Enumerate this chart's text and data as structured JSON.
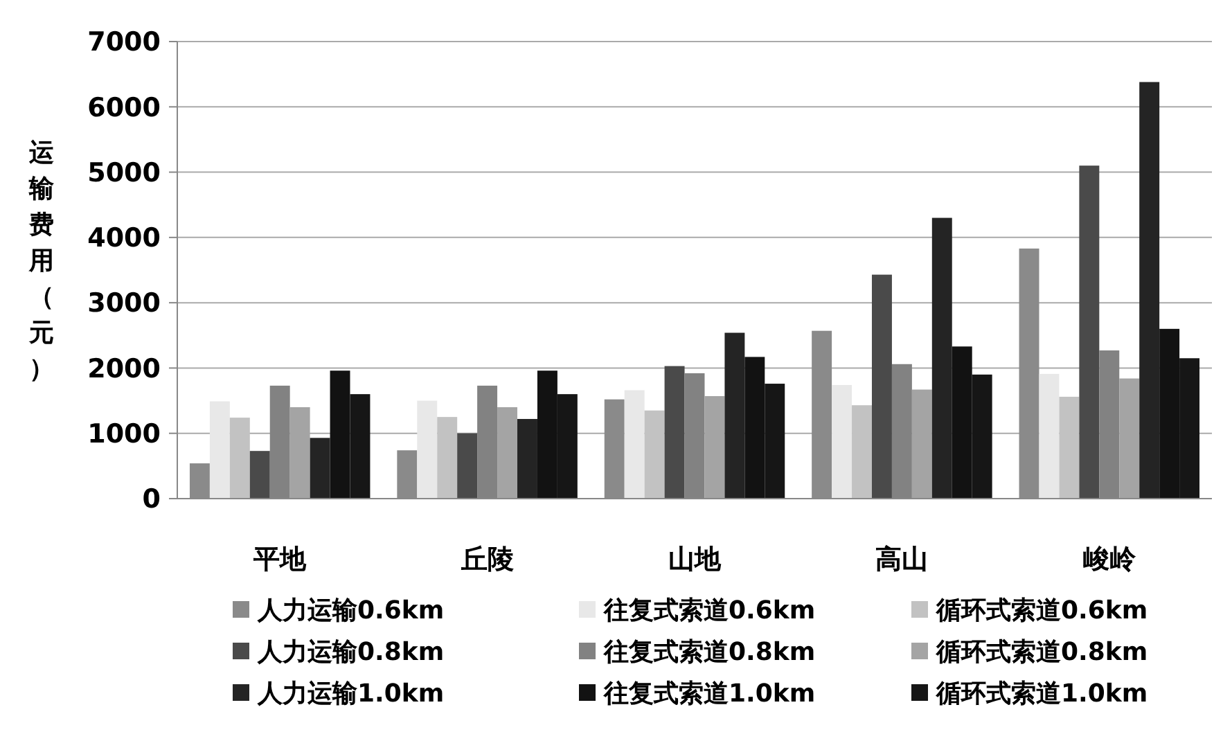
{
  "chart_data": {
    "type": "bar",
    "ylabel": "运输费用（元）",
    "categories": [
      "平地",
      "丘陵",
      "山地",
      "高山",
      "峻岭"
    ],
    "ylim": [
      0,
      7000
    ],
    "yticks": [
      0,
      1000,
      2000,
      3000,
      4000,
      5000,
      6000,
      7000
    ],
    "grid": "y",
    "legend": "bottom",
    "series": [
      {
        "name": "人力运输0.6km",
        "color": "#8a8a8a",
        "values": [
          540,
          740,
          1520,
          2570,
          3830
        ]
      },
      {
        "name": "往复式索道0.6km",
        "color": "#e8e8e8",
        "values": [
          1490,
          1500,
          1660,
          1740,
          1910
        ]
      },
      {
        "name": "循环式索道0.6km",
        "color": "#c2c2c2",
        "values": [
          1240,
          1250,
          1350,
          1430,
          1560
        ]
      },
      {
        "name": "人力运输0.8km",
        "color": "#4a4a4a",
        "values": [
          730,
          1000,
          2030,
          3430,
          5100
        ]
      },
      {
        "name": "往复式索道0.8km",
        "color": "#828282",
        "values": [
          1730,
          1730,
          1920,
          2060,
          2270
        ]
      },
      {
        "name": "循环式索道0.8km",
        "color": "#a4a4a4",
        "values": [
          1400,
          1400,
          1570,
          1670,
          1840
        ]
      },
      {
        "name": "人力运输1.0km",
        "color": "#242424",
        "values": [
          930,
          1220,
          2540,
          4300,
          6380
        ]
      },
      {
        "name": "往复式索道1.0km",
        "color": "#121212",
        "values": [
          1960,
          1960,
          2170,
          2330,
          2600
        ]
      },
      {
        "name": "循环式索道1.0km",
        "color": "#161616",
        "values": [
          1600,
          1600,
          1760,
          1900,
          2150
        ]
      }
    ]
  }
}
